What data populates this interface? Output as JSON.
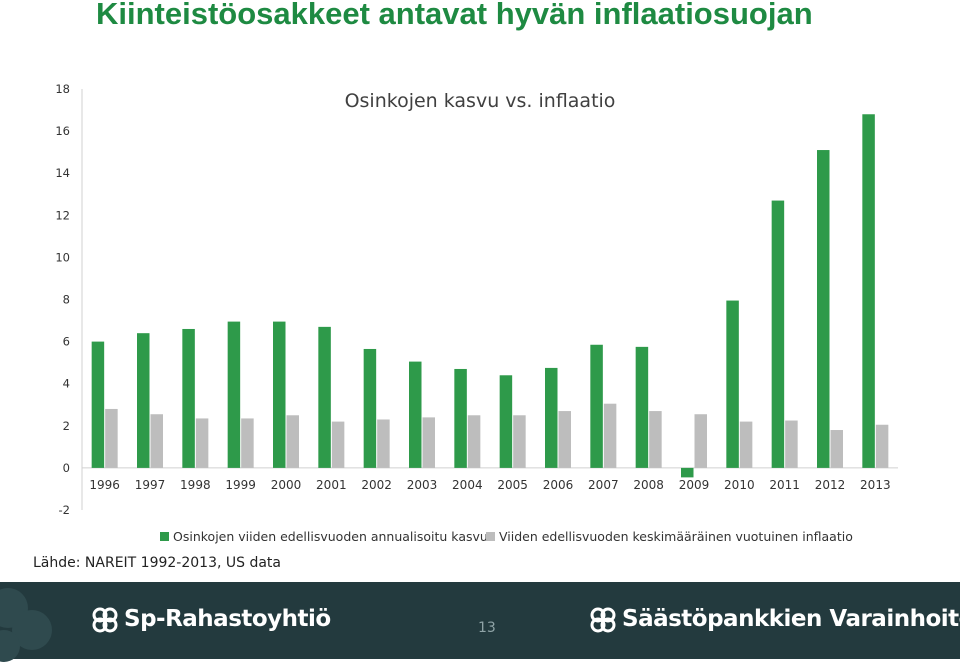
{
  "slide": {
    "title": "Kiinteistöosakkeet antavat hyvän inflaatiosuojan",
    "source": "Lähde: NAREIT 1992-2013, US data",
    "page_number": "13"
  },
  "footer": {
    "brand_left": "Sp-Rahastoyhtiö",
    "brand_right": "Säästöpankkien Varainhoito",
    "background_color": "#233a3e"
  },
  "chart_data": {
    "type": "bar",
    "title": "Osinkojen kasvu vs. inflaatio",
    "categories": [
      "1996",
      "1997",
      "1998",
      "1999",
      "2000",
      "2001",
      "2002",
      "2003",
      "2004",
      "2005",
      "2006",
      "2007",
      "2008",
      "2009",
      "2010",
      "2011",
      "2012",
      "2013"
    ],
    "series": [
      {
        "name": "Osinkojen viiden edellisvuoden annualisoitu kasvu",
        "color": "#2e9a4a",
        "values": [
          6.0,
          6.4,
          6.6,
          6.95,
          6.95,
          6.7,
          5.65,
          5.05,
          4.7,
          4.4,
          4.75,
          5.85,
          5.75,
          -0.45,
          7.95,
          12.7,
          15.1,
          16.8
        ]
      },
      {
        "name": "Viiden edellisvuoden keskimääräinen vuotuinen inflaatio",
        "color": "#bdbdbd",
        "values": [
          2.8,
          2.55,
          2.35,
          2.35,
          2.5,
          2.2,
          2.3,
          2.4,
          2.5,
          2.5,
          2.7,
          3.05,
          2.7,
          2.55,
          2.2,
          2.25,
          1.8,
          2.05
        ]
      }
    ],
    "ylim": [
      -2,
      18
    ],
    "yticks": [
      "-2",
      "0",
      "2",
      "4",
      "6",
      "8",
      "10",
      "12",
      "14",
      "16",
      "18"
    ],
    "xlabel": "",
    "ylabel": "",
    "legend_position": "bottom"
  }
}
